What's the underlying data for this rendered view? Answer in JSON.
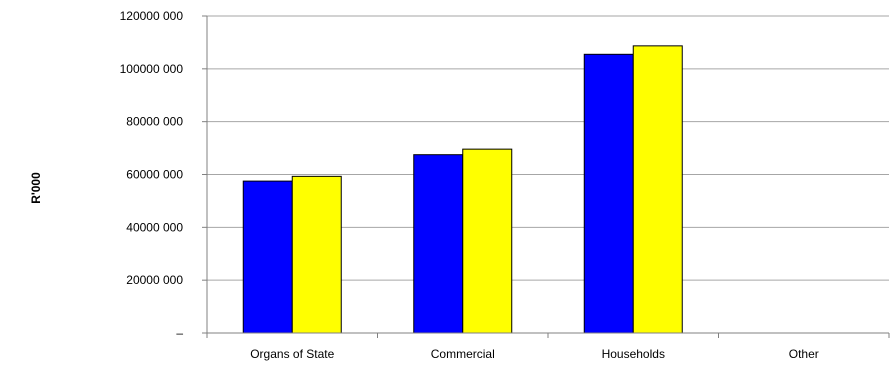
{
  "chart_data": {
    "type": "bar",
    "ylabel": "R'000",
    "xlabel": "",
    "categories": [
      "Organs of State",
      "Commercial",
      "Households",
      "Other"
    ],
    "series": [
      {
        "color": "#0000ff",
        "values": [
          57500000,
          67500000,
          105500000,
          0
        ]
      },
      {
        "color": "#ffff00",
        "values": [
          59300000,
          69600000,
          108700000,
          0
        ]
      }
    ],
    "ylim": [
      0,
      120000000
    ],
    "yticks": [
      {
        "value": 0,
        "label": "–"
      },
      {
        "value": 20000000,
        "label": "20000 000"
      },
      {
        "value": 40000000,
        "label": "40000 000"
      },
      {
        "value": 60000000,
        "label": "60000 000"
      },
      {
        "value": 80000000,
        "label": "80000 000"
      },
      {
        "value": 100000000,
        "label": "100000 000"
      },
      {
        "value": 120000000,
        "label": "120000 000"
      }
    ],
    "grid": true,
    "legend": "none"
  }
}
